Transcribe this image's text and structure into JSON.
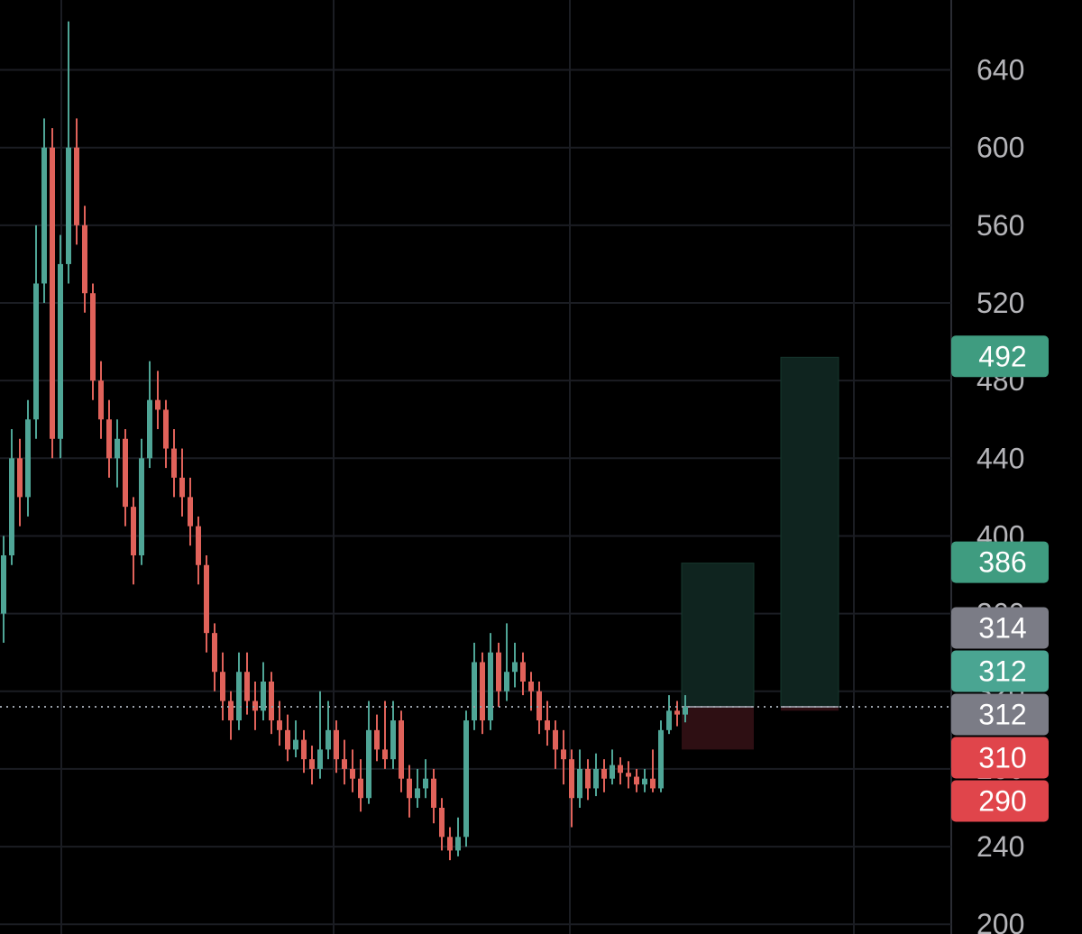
{
  "chart_data": {
    "type": "candlestick",
    "ylim": [
      195,
      676
    ],
    "yticks": [
      200,
      240,
      280,
      320,
      360,
      400,
      440,
      480,
      520,
      560,
      600,
      640
    ],
    "grid": true,
    "up_color": "#4fa596",
    "down_color": "#e0625a",
    "open": [
      360,
      390,
      440,
      420,
      460,
      530,
      600,
      450,
      540,
      600,
      560,
      525,
      480,
      460,
      440,
      450,
      415,
      390,
      440,
      470,
      465,
      445,
      430,
      420,
      405,
      385,
      350,
      330,
      315,
      305,
      330,
      315,
      310,
      325,
      305,
      300,
      290,
      295,
      285,
      280,
      290,
      300,
      285,
      280,
      275,
      265,
      300,
      290,
      285,
      305,
      275,
      265,
      270,
      275,
      260,
      245,
      238,
      245,
      305,
      335,
      305,
      340,
      320,
      330,
      335,
      325,
      320,
      305,
      300,
      290,
      285,
      265,
      280,
      270,
      280,
      275,
      282,
      278,
      276,
      272,
      275,
      270,
      300,
      310,
      308
    ],
    "high": [
      400,
      455,
      450,
      470,
      560,
      615,
      610,
      555,
      665,
      615,
      570,
      530,
      490,
      470,
      460,
      455,
      420,
      450,
      490,
      485,
      470,
      455,
      445,
      430,
      410,
      390,
      355,
      340,
      320,
      340,
      340,
      325,
      335,
      330,
      315,
      308,
      305,
      300,
      292,
      320,
      315,
      305,
      295,
      290,
      285,
      315,
      308,
      315,
      315,
      310,
      282,
      280,
      285,
      280,
      265,
      250,
      255,
      310,
      345,
      340,
      350,
      345,
      355,
      345,
      340,
      330,
      325,
      315,
      305,
      300,
      290,
      290,
      285,
      288,
      285,
      290,
      286,
      284,
      280,
      280,
      290,
      305,
      318,
      315,
      318
    ],
    "low": [
      345,
      385,
      405,
      410,
      450,
      520,
      440,
      440,
      530,
      550,
      515,
      470,
      450,
      430,
      425,
      405,
      375,
      385,
      435,
      455,
      435,
      420,
      410,
      395,
      375,
      340,
      320,
      305,
      295,
      300,
      308,
      300,
      305,
      298,
      292,
      284,
      286,
      278,
      272,
      275,
      285,
      278,
      272,
      268,
      258,
      262,
      284,
      280,
      280,
      268,
      255,
      260,
      265,
      252,
      238,
      233,
      235,
      240,
      300,
      298,
      300,
      312,
      315,
      322,
      318,
      310,
      298,
      292,
      280,
      272,
      250,
      260,
      264,
      266,
      268,
      272,
      272,
      270,
      268,
      268,
      268,
      268,
      298,
      302,
      304
    ],
    "close": [
      390,
      440,
      420,
      460,
      530,
      600,
      450,
      540,
      600,
      560,
      525,
      480,
      460,
      440,
      450,
      415,
      390,
      440,
      470,
      465,
      445,
      430,
      420,
      405,
      385,
      350,
      330,
      315,
      305,
      330,
      315,
      310,
      325,
      305,
      300,
      290,
      295,
      285,
      280,
      290,
      300,
      285,
      280,
      275,
      265,
      300,
      290,
      285,
      305,
      275,
      265,
      270,
      275,
      260,
      245,
      238,
      245,
      305,
      335,
      305,
      340,
      320,
      330,
      335,
      325,
      320,
      305,
      300,
      290,
      285,
      265,
      280,
      270,
      280,
      275,
      282,
      278,
      276,
      272,
      275,
      270,
      300,
      310,
      308,
      312
    ],
    "last": 312,
    "positions": [
      {
        "entry": 312,
        "target": 386,
        "stop": 290
      },
      {
        "entry": 312,
        "target": 492,
        "stop": 310
      }
    ],
    "price_labels": [
      {
        "value": 492,
        "color": "#3f9c80"
      },
      {
        "value": 386,
        "color": "#3f9c80"
      },
      {
        "value": 314,
        "color": "#7b7c86"
      },
      {
        "value": 312,
        "color": "#4aa592"
      },
      {
        "value": 312,
        "color": "#7b7c86"
      },
      {
        "value": 310,
        "color": "#e0454b"
      },
      {
        "value": 290,
        "color": "#e0454b"
      }
    ]
  }
}
